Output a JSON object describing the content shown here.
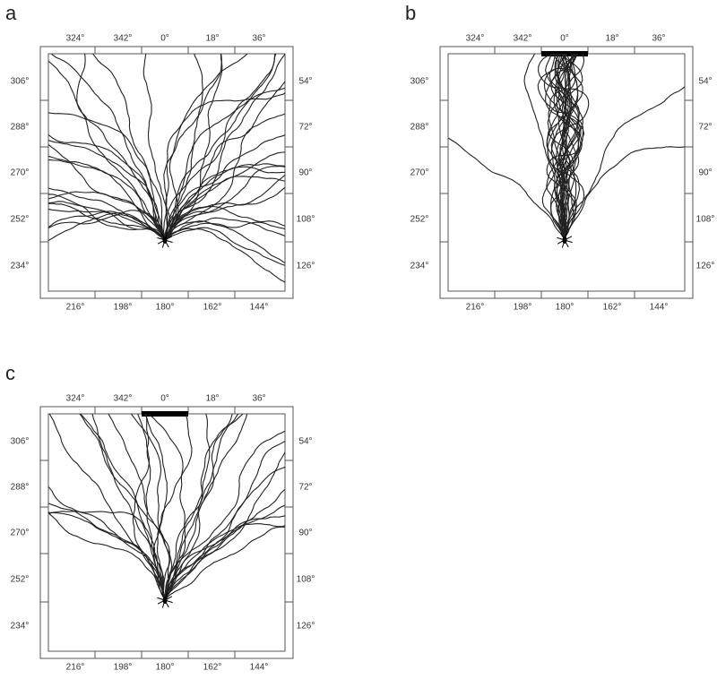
{
  "panels": [
    {
      "label": "a",
      "top": [
        "324°",
        "342°",
        "0°",
        "18°",
        "36°"
      ],
      "bottom": [
        "216°",
        "198°",
        "180°",
        "162°",
        "144°"
      ],
      "left": [
        "306°",
        "288°",
        "270°",
        "252°",
        "234°"
      ],
      "right": [
        "54°",
        "72°",
        "90°",
        "108°",
        "126°"
      ]
    },
    {
      "label": "b",
      "top": [
        "324°",
        "342°",
        "0°",
        "18°",
        "36°"
      ],
      "bottom": [
        "216°",
        "198°",
        "180°",
        "162°",
        "144°"
      ],
      "left": [
        "306°",
        "288°",
        "270°",
        "252°",
        "234°"
      ],
      "right": [
        "54°",
        "72°",
        "90°",
        "108°",
        "126°"
      ]
    },
    {
      "label": "c",
      "top": [
        "324°",
        "342°",
        "0°",
        "18°",
        "36°"
      ],
      "bottom": [
        "216°",
        "198°",
        "180°",
        "162°",
        "144°"
      ],
      "left": [
        "306°",
        "288°",
        "270°",
        "252°",
        "234°"
      ],
      "right": [
        "54°",
        "72°",
        "90°",
        "108°",
        "126°"
      ]
    }
  ]
}
